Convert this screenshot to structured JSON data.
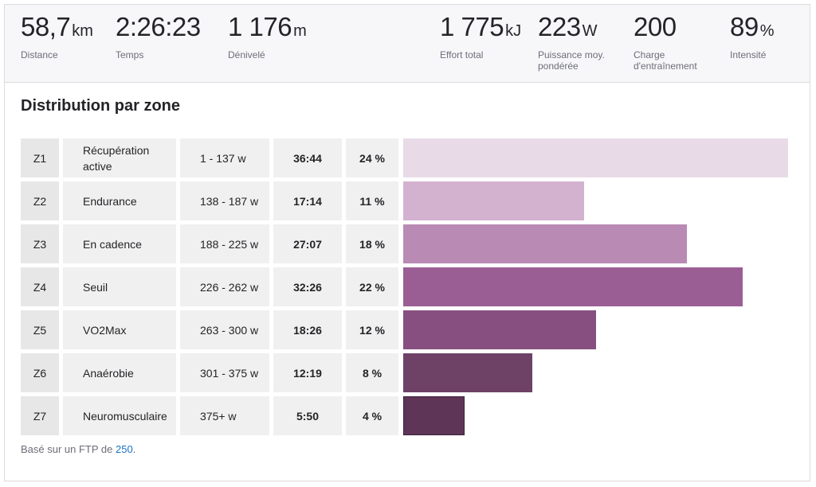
{
  "summary": {
    "distance": {
      "value": "58,7",
      "unit": "km",
      "label": "Distance"
    },
    "temps": {
      "value": "2:26:23",
      "unit": "",
      "label": "Temps"
    },
    "denivele": {
      "value": "1 176",
      "unit": "m",
      "label": "Dénivelé"
    },
    "effort": {
      "value": "1 775",
      "unit": "kJ",
      "label": "Effort total"
    },
    "puissance": {
      "value": "223",
      "unit": "W",
      "label": "Puissance moy. pondérée"
    },
    "charge": {
      "value": "200",
      "unit": "",
      "label": "Charge d'entraînement"
    },
    "intensite": {
      "value": "89",
      "unit": "%",
      "label": "Intensité"
    }
  },
  "section": {
    "title": "Distribution par zone"
  },
  "zones": [
    {
      "zone": "Z1",
      "name": "Récupération active",
      "range": "1 - 137 w",
      "time": "36:44",
      "percent": "24 %",
      "share": 1.0,
      "color": "#e8dbe7"
    },
    {
      "zone": "Z2",
      "name": "Endurance",
      "range": "138 - 187 w",
      "time": "17:14",
      "percent": "11 %",
      "share": 0.469,
      "color": "#d3b2cf"
    },
    {
      "zone": "Z3",
      "name": "En cadence",
      "range": "188 - 225 w",
      "time": "27:07",
      "percent": "18 %",
      "share": 0.738,
      "color": "#b98ab4"
    },
    {
      "zone": "Z4",
      "name": "Seuil",
      "range": "226 - 262 w",
      "time": "32:26",
      "percent": "22 %",
      "share": 0.883,
      "color": "#9b5e94"
    },
    {
      "zone": "Z5",
      "name": "VO2Max",
      "range": "263 - 300 w",
      "time": "18:26",
      "percent": "12 %",
      "share": 0.502,
      "color": "#864f7f"
    },
    {
      "zone": "Z6",
      "name": "Anaérobie",
      "range": "301 - 375 w",
      "time": "12:19",
      "percent": "8 %",
      "share": 0.335,
      "color": "#6e4167"
    },
    {
      "zone": "Z7",
      "name": "Neuromusculaire",
      "range": "375+ w",
      "time": "5:50",
      "percent": "4 %",
      "share": 0.159,
      "color": "#5e3556"
    }
  ],
  "footnote": {
    "prefix": "Basé sur un FTP de ",
    "ftp_value": "250",
    "suffix": "."
  }
}
